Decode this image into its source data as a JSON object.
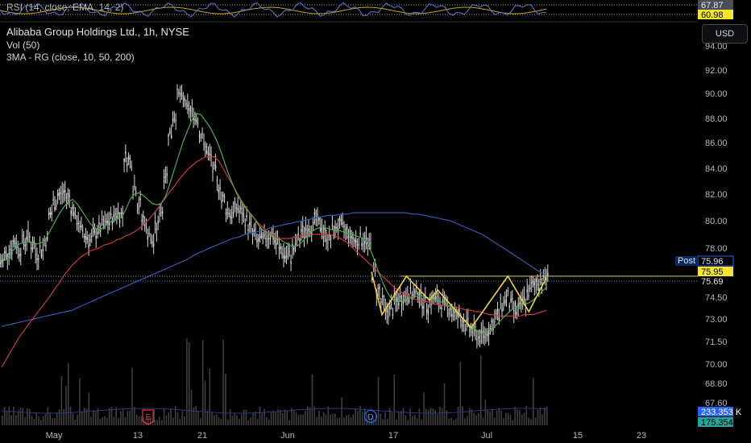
{
  "legend": {
    "rsi": "RSI (14, close, EMA, 14, 2)",
    "title": "Alibaba Group Holdings Ltd., 1h, NYSE",
    "vol": "Vol (50)",
    "ma": "3MA - RG (close, 10, 50, 200)"
  },
  "currency_button": "USD",
  "post_label": "Post",
  "colors": {
    "background": "#000000",
    "candle": "#d8d8d8",
    "ma10": "#4caf50",
    "ma50": "#d03a38",
    "ma200": "#3659b5",
    "pattern": "#f0d43a",
    "rsi_line": "#5b7fd6",
    "rsi_signal": "#c9a227",
    "post_tag": "#2962ff",
    "price_tag": "#f5e42b",
    "vol_tag_1": "#2962ff",
    "vol_tag_2": "#26a69a"
  },
  "chart_data": {
    "type": "candlestick",
    "symbol": "Alibaba Group Holdings Ltd.",
    "interval": "1h",
    "exchange": "NYSE",
    "y_axis": {
      "ticks": [
        "94.00",
        "92.00",
        "90.00",
        "88.00",
        "86.00",
        "84.00",
        "82.00",
        "80.00",
        "78.00",
        "74.50",
        "73.00",
        "71.50",
        "70.00",
        "68.80",
        "67.60"
      ]
    },
    "x_axis": {
      "ticks": [
        "May",
        "13",
        "21",
        "Jun",
        "17",
        "Jul",
        "15",
        "23"
      ]
    },
    "price_tags": [
      {
        "label": "Post",
        "value": "75.96"
      },
      {
        "value": "75.95"
      },
      {
        "value": "75.69"
      }
    ],
    "rsi": {
      "values": [
        "67.87",
        "60.98"
      ]
    },
    "volume_tags": [
      "233.353 K",
      "175.354 K"
    ],
    "event_markers": [
      "E",
      "D"
    ],
    "price_path": [
      77.0,
      77.6,
      78.0,
      78.4,
      77.9,
      78.5,
      78.8,
      78.2,
      77.6,
      77.9,
      78.6,
      80.5,
      81.4,
      81.9,
      82.1,
      81.8,
      80.9,
      80.0,
      79.3,
      78.9,
      78.6,
      79.0,
      79.4,
      79.7,
      79.9,
      80.2,
      80.6,
      80.5,
      84.8,
      84.6,
      82.6,
      81.2,
      80.1,
      79.2,
      78.4,
      79.5,
      80.8,
      83.5,
      86.8,
      88.2,
      89.9,
      89.5,
      88.8,
      88.5,
      88.0,
      86.8,
      85.6,
      84.9,
      83.8,
      82.7,
      81.6,
      80.8,
      80.5,
      81.0,
      80.6,
      80.1,
      79.6,
      79.0,
      78.5,
      78.6,
      78.9,
      79.0,
      78.4,
      77.9,
      77.5,
      77.4,
      77.9,
      78.6,
      79.2,
      79.5,
      79.6,
      80.0,
      79.7,
      79.0,
      78.7,
      79.3,
      79.6,
      79.5,
      79.2,
      78.8,
      78.5,
      78.7,
      78.6,
      78.2,
      76.3,
      75.0,
      74.1,
      73.5,
      73.7,
      74.2,
      74.4,
      74.5,
      74.8,
      74.6,
      74.9,
      74.3,
      74.0,
      74.3,
      74.4,
      74.1,
      74.0,
      73.8,
      73.4,
      73.2,
      72.9,
      72.6,
      72.3,
      72.0,
      71.8,
      72.0,
      72.3,
      72.7,
      73.2,
      74.0,
      74.5,
      74.0,
      73.6,
      73.7,
      74.3,
      74.9,
      75.3,
      75.6,
      75.8,
      75.9
    ],
    "ma10_path": [
      77.0,
      77.2,
      77.6,
      78.0,
      78.3,
      78.4,
      78.5,
      78.4,
      78.3,
      78.4,
      78.7,
      79.3,
      79.9,
      80.5,
      81.0,
      81.4,
      81.6,
      81.3,
      80.8,
      80.3,
      79.8,
      79.5,
      79.3,
      79.5,
      79.8,
      80.0,
      80.2,
      80.2,
      80.8,
      81.6,
      82.0,
      82.1,
      81.9,
      81.6,
      81.3,
      81.2,
      81.3,
      81.8,
      82.8,
      83.9,
      85.0,
      86.1,
      87.0,
      87.9,
      88.4,
      88.3,
      87.8,
      87.3,
      86.6,
      85.8,
      84.8,
      83.8,
      82.9,
      82.1,
      81.5,
      81.0,
      80.6,
      80.2,
      79.7,
      79.3,
      79.1,
      78.9,
      78.7,
      78.6,
      78.4,
      78.2,
      78.1,
      78.2,
      78.5,
      78.9,
      79.2,
      79.4,
      79.5,
      79.5,
      79.4,
      79.3,
      79.3,
      79.2,
      79.1,
      79.0,
      78.9,
      78.8,
      78.6,
      78.1,
      77.3,
      76.4,
      75.6,
      74.9,
      74.4,
      74.2,
      74.2,
      74.3,
      74.4,
      74.5,
      74.6,
      74.6,
      74.5,
      74.4,
      74.3,
      74.2,
      74.1,
      73.9,
      73.7,
      73.4,
      73.1,
      72.8,
      72.5,
      72.3,
      72.1,
      72.1,
      72.2,
      72.4,
      72.7,
      73.0,
      73.3,
      73.6,
      73.8,
      73.9,
      74.0,
      74.1,
      74.3,
      74.6,
      74.9,
      75.2
    ],
    "ma50_path": [
      69.8,
      70.3,
      70.8,
      71.3,
      71.8,
      72.2,
      72.6,
      73.0,
      73.4,
      73.8,
      74.2,
      74.6,
      75.1,
      75.5,
      76.0,
      76.4,
      76.8,
      77.1,
      77.4,
      77.6,
      77.8,
      77.9,
      78.0,
      78.2,
      78.3,
      78.4,
      78.6,
      78.7,
      78.9,
      79.0,
      79.2,
      79.4,
      79.7,
      80.0,
      80.4,
      80.8,
      81.3,
      81.7,
      82.2,
      82.6,
      83.1,
      83.5,
      83.9,
      84.2,
      84.5,
      84.7,
      84.9,
      84.9,
      84.9,
      84.6,
      84.0,
      83.4,
      82.8,
      82.2,
      81.6,
      81.1,
      80.6,
      80.2,
      79.8,
      79.5,
      79.2,
      79.0,
      78.8,
      78.7,
      78.7,
      78.7,
      78.8,
      78.9,
      78.9,
      79.0,
      79.0,
      79.0,
      79.0,
      79.0,
      79.0,
      78.9,
      78.8,
      78.6,
      78.4,
      78.1,
      77.8,
      77.5,
      77.2,
      76.9,
      76.6,
      76.3,
      76.0,
      75.7,
      75.4,
      75.1,
      74.9,
      74.7,
      74.6,
      74.4,
      74.3,
      74.2,
      74.2,
      74.1,
      74.0,
      74.0,
      73.9,
      73.9,
      73.8,
      73.8,
      73.7,
      73.6,
      73.6,
      73.5,
      73.5,
      73.4,
      73.3,
      73.3,
      73.2,
      73.2,
      73.2,
      73.2,
      73.2,
      73.2,
      73.3,
      73.3,
      73.3,
      73.4,
      73.5,
      73.6
    ],
    "ma200_path": [
      72.5,
      72.6,
      72.7,
      72.8,
      72.9,
      73.0,
      73.1,
      73.2,
      73.3,
      73.4,
      73.5,
      73.6,
      73.8,
      74.0,
      74.2,
      74.4,
      74.6,
      74.8,
      75.0,
      75.2,
      75.4,
      75.6,
      75.8,
      76.0,
      76.2,
      76.4,
      76.6,
      76.8,
      77.0,
      77.2,
      77.5,
      77.7,
      77.9,
      78.1,
      78.3,
      78.5,
      78.7,
      78.8,
      79.0,
      79.1,
      79.2,
      79.3,
      79.5,
      79.6,
      79.7,
      79.8,
      79.9,
      80.0,
      80.1,
      80.2,
      80.3,
      80.4,
      80.4,
      80.5,
      80.5,
      80.6,
      80.6,
      80.6,
      80.6,
      80.6,
      80.6,
      80.6,
      80.6,
      80.6,
      80.5,
      80.5,
      80.4,
      80.3,
      80.2,
      80.1,
      80.0,
      79.8,
      79.6,
      79.4,
      79.2,
      79.0,
      78.7,
      78.4,
      78.1,
      77.8,
      77.5,
      77.2,
      76.9,
      76.6,
      76.3,
      76.0
    ],
    "pattern_points": [
      [
        0.0,
        76.3
      ],
      [
        0.06,
        73.3
      ],
      [
        0.2,
        76.0
      ],
      [
        0.33,
        74.3
      ],
      [
        0.38,
        75.0
      ],
      [
        0.57,
        72.4
      ],
      [
        0.78,
        76.0
      ],
      [
        0.9,
        73.5
      ],
      [
        1.0,
        75.9
      ]
    ],
    "resistance": 76.0,
    "legend_placement": "top-left"
  }
}
